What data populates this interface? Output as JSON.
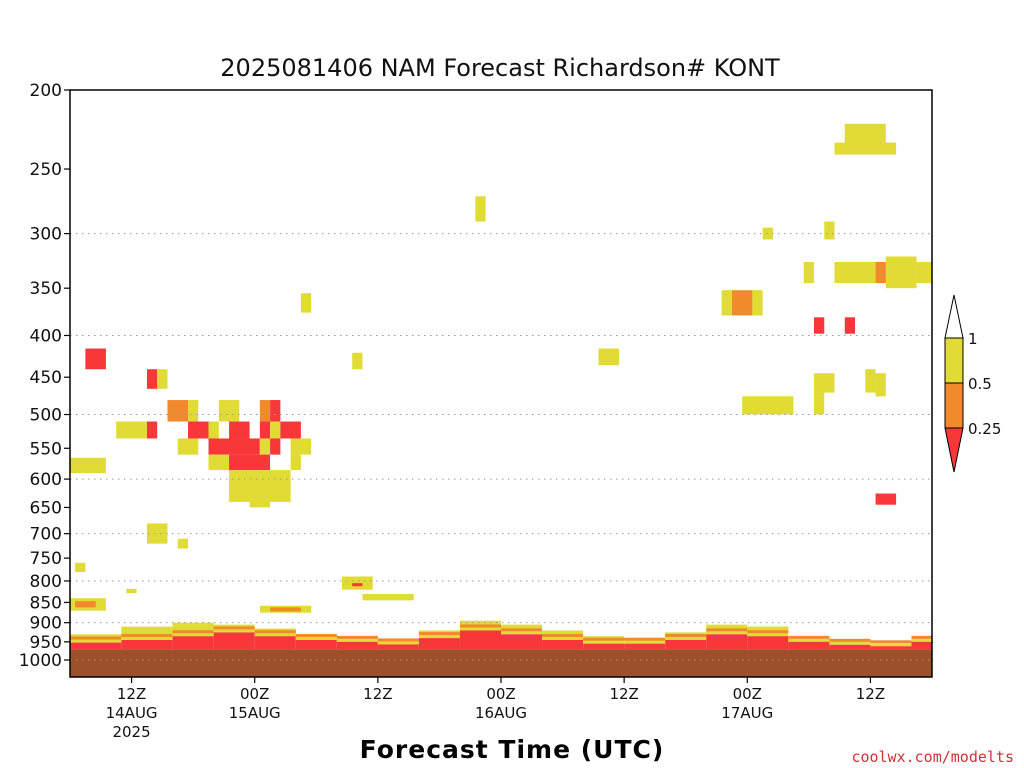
{
  "chart_data": {
    "type": "heatmap",
    "title": "2025081406 NAM Forecast Richardson# KONT",
    "xlabel": "Forecast Time (UTC)",
    "ylabel": "",
    "y_axis": {
      "scale": "log",
      "reversed": true,
      "range_hpa": [
        1000,
        200
      ],
      "ticks": [
        "200",
        "250",
        "300",
        "350",
        "400",
        "450",
        "500",
        "550",
        "600",
        "650",
        "700",
        "750",
        "800",
        "850",
        "900",
        "950",
        "1000"
      ]
    },
    "x_axis": {
      "range_hours": [
        0,
        84
      ],
      "ticks": [
        {
          "hour": 6,
          "lines": [
            "12Z",
            "14AUG",
            "2025"
          ]
        },
        {
          "hour": 18,
          "lines": [
            "00Z",
            "15AUG"
          ]
        },
        {
          "hour": 30,
          "lines": [
            "12Z"
          ]
        },
        {
          "hour": 42,
          "lines": [
            "00Z",
            "16AUG"
          ]
        },
        {
          "hour": 54,
          "lines": [
            "12Z"
          ]
        },
        {
          "hour": 66,
          "lines": [
            "00Z",
            "17AUG"
          ]
        },
        {
          "hour": 78,
          "lines": [
            "12Z"
          ]
        }
      ]
    },
    "grid": true,
    "colorbar": {
      "placement": "right",
      "labels": [
        "1",
        "0.5",
        "0.25"
      ],
      "colors": {
        "lt_025": "#f7373a",
        "025_05": "#f08a2d",
        "05_1": "#e1db35",
        "gt_1": "#ffffff",
        "below_ground": "#9c512b"
      }
    },
    "below_ground_hpa": 970,
    "cells": [
      {
        "h0": 1.5,
        "h1": 3.5,
        "p0": 415,
        "p1": 440,
        "c": "lt_025"
      },
      {
        "h0": 0,
        "h1": 3.5,
        "p0": 565,
        "p1": 590,
        "c": "05_1"
      },
      {
        "h0": 0.5,
        "h1": 1.5,
        "p0": 760,
        "p1": 780,
        "c": "05_1"
      },
      {
        "h0": 7.5,
        "h1": 8.5,
        "p0": 440,
        "p1": 465,
        "c": "lt_025"
      },
      {
        "h0": 8.5,
        "h1": 9.5,
        "p0": 440,
        "p1": 465,
        "c": "05_1"
      },
      {
        "h0": 9.5,
        "h1": 11.5,
        "p0": 480,
        "p1": 510,
        "c": "025_05"
      },
      {
        "h0": 11.5,
        "h1": 12.5,
        "p0": 480,
        "p1": 510,
        "c": "05_1"
      },
      {
        "h0": 14.5,
        "h1": 16.5,
        "p0": 480,
        "p1": 510,
        "c": "05_1"
      },
      {
        "h0": 18.5,
        "h1": 19.5,
        "p0": 480,
        "p1": 510,
        "c": "025_05"
      },
      {
        "h0": 19.5,
        "h1": 20.5,
        "p0": 480,
        "p1": 510,
        "c": "lt_025"
      },
      {
        "h0": 4.5,
        "h1": 7.5,
        "p0": 510,
        "p1": 535,
        "c": "05_1"
      },
      {
        "h0": 7.5,
        "h1": 8.5,
        "p0": 510,
        "p1": 535,
        "c": "lt_025"
      },
      {
        "h0": 11.5,
        "h1": 13.5,
        "p0": 510,
        "p1": 535,
        "c": "lt_025"
      },
      {
        "h0": 13.5,
        "h1": 14.5,
        "p0": 510,
        "p1": 535,
        "c": "05_1"
      },
      {
        "h0": 15.5,
        "h1": 17.5,
        "p0": 510,
        "p1": 535,
        "c": "lt_025"
      },
      {
        "h0": 18.5,
        "h1": 19.5,
        "p0": 510,
        "p1": 535,
        "c": "lt_025"
      },
      {
        "h0": 19.5,
        "h1": 20.5,
        "p0": 510,
        "p1": 535,
        "c": "05_1"
      },
      {
        "h0": 20.5,
        "h1": 22.5,
        "p0": 510,
        "p1": 535,
        "c": "lt_025"
      },
      {
        "h0": 10.5,
        "h1": 12.5,
        "p0": 535,
        "p1": 560,
        "c": "05_1"
      },
      {
        "h0": 13.5,
        "h1": 18.5,
        "p0": 535,
        "p1": 560,
        "c": "lt_025"
      },
      {
        "h0": 18.5,
        "h1": 19.5,
        "p0": 535,
        "p1": 560,
        "c": "05_1"
      },
      {
        "h0": 19.5,
        "h1": 20.5,
        "p0": 535,
        "p1": 560,
        "c": "lt_025"
      },
      {
        "h0": 21.5,
        "h1": 23.5,
        "p0": 535,
        "p1": 560,
        "c": "05_1"
      },
      {
        "h0": 13.5,
        "h1": 15.5,
        "p0": 560,
        "p1": 585,
        "c": "05_1"
      },
      {
        "h0": 15.5,
        "h1": 19.5,
        "p0": 560,
        "p1": 585,
        "c": "lt_025"
      },
      {
        "h0": 21.5,
        "h1": 22.5,
        "p0": 560,
        "p1": 585,
        "c": "05_1"
      },
      {
        "h0": 15.5,
        "h1": 21.5,
        "p0": 585,
        "p1": 640,
        "c": "05_1"
      },
      {
        "h0": 17.5,
        "h1": 19.5,
        "p0": 640,
        "p1": 650,
        "c": "05_1"
      },
      {
        "h0": 7.5,
        "h1": 9.5,
        "p0": 680,
        "p1": 720,
        "c": "05_1"
      },
      {
        "h0": 10.5,
        "h1": 11.5,
        "p0": 710,
        "p1": 730,
        "c": "05_1"
      },
      {
        "h0": 0,
        "h1": 3.5,
        "p0": 840,
        "p1": 870,
        "c": "05_1"
      },
      {
        "h0": 0.5,
        "h1": 2.5,
        "p0": 847,
        "p1": 862,
        "c": "025_05"
      },
      {
        "h0": 5.5,
        "h1": 6.5,
        "p0": 818,
        "p1": 828,
        "c": "05_1"
      },
      {
        "h0": 22.5,
        "h1": 23.5,
        "p0": 355,
        "p1": 375,
        "c": "05_1"
      },
      {
        "h0": 27.5,
        "h1": 28.5,
        "p0": 420,
        "p1": 440,
        "c": "05_1"
      },
      {
        "h0": 39.5,
        "h1": 40.5,
        "p0": 270,
        "p1": 290,
        "c": "05_1"
      },
      {
        "h0": 51.5,
        "h1": 53.5,
        "p0": 415,
        "p1": 435,
        "c": "05_1"
      },
      {
        "h0": 26.5,
        "h1": 29.5,
        "p0": 790,
        "p1": 820,
        "c": "05_1"
      },
      {
        "h0": 27.5,
        "h1": 28.5,
        "p0": 805,
        "p1": 812,
        "c": "lt_025"
      },
      {
        "h0": 28.5,
        "h1": 33.5,
        "p0": 830,
        "p1": 845,
        "c": "05_1"
      },
      {
        "h0": 18.5,
        "h1": 23.5,
        "p0": 858,
        "p1": 875,
        "c": "05_1"
      },
      {
        "h0": 19.5,
        "h1": 22.5,
        "p0": 862,
        "p1": 872,
        "c": "025_05"
      },
      {
        "h0": 75.5,
        "h1": 79.5,
        "p0": 220,
        "p1": 238,
        "c": "05_1"
      },
      {
        "h0": 74.5,
        "h1": 80.5,
        "p0": 232,
        "p1": 240,
        "c": "05_1"
      },
      {
        "h0": 67.5,
        "h1": 68.5,
        "p0": 295,
        "p1": 305,
        "c": "05_1"
      },
      {
        "h0": 73.5,
        "h1": 74.5,
        "p0": 290,
        "p1": 305,
        "c": "05_1"
      },
      {
        "h0": 71.5,
        "h1": 72.5,
        "p0": 325,
        "p1": 345,
        "c": "05_1"
      },
      {
        "h0": 74.5,
        "h1": 78.5,
        "p0": 325,
        "p1": 345,
        "c": "05_1"
      },
      {
        "h0": 78.5,
        "h1": 79.5,
        "p0": 325,
        "p1": 345,
        "c": "025_05"
      },
      {
        "h0": 79.5,
        "h1": 81.5,
        "p0": 325,
        "p1": 345,
        "c": "lt_025"
      },
      {
        "h0": 81.5,
        "h1": 82.5,
        "p0": 325,
        "p1": 345,
        "c": "025_05"
      },
      {
        "h0": 82.5,
        "h1": 84,
        "p0": 325,
        "p1": 345,
        "c": "05_1"
      },
      {
        "h0": 79.5,
        "h1": 82.5,
        "p0": 320,
        "p1": 350,
        "c": "05_1"
      },
      {
        "h0": 63.5,
        "h1": 64.5,
        "p0": 352,
        "p1": 378,
        "c": "05_1"
      },
      {
        "h0": 64.5,
        "h1": 66.5,
        "p0": 352,
        "p1": 378,
        "c": "025_05"
      },
      {
        "h0": 66.5,
        "h1": 67.5,
        "p0": 352,
        "p1": 378,
        "c": "05_1"
      },
      {
        "h0": 72.5,
        "h1": 73.5,
        "p0": 380,
        "p1": 398,
        "c": "lt_025"
      },
      {
        "h0": 75.5,
        "h1": 76.5,
        "p0": 380,
        "p1": 398,
        "c": "lt_025"
      },
      {
        "h0": 72.5,
        "h1": 74.5,
        "p0": 445,
        "p1": 470,
        "c": "05_1"
      },
      {
        "h0": 77.5,
        "h1": 78.5,
        "p0": 440,
        "p1": 470,
        "c": "05_1"
      },
      {
        "h0": 78.5,
        "h1": 79.5,
        "p0": 445,
        "p1": 475,
        "c": "05_1"
      },
      {
        "h0": 65.5,
        "h1": 70.5,
        "p0": 475,
        "p1": 500,
        "c": "05_1"
      },
      {
        "h0": 72.5,
        "h1": 73.5,
        "p0": 470,
        "p1": 500,
        "c": "05_1"
      },
      {
        "h0": 78.5,
        "h1": 80.5,
        "p0": 625,
        "p1": 645,
        "c": "lt_025"
      }
    ],
    "surface_layer": [
      {
        "h0": 0,
        "h1": 5,
        "red_top": 952,
        "yel_top": 930
      },
      {
        "h0": 5,
        "h1": 10,
        "red_top": 945,
        "yel_top": 910
      },
      {
        "h0": 10,
        "h1": 14,
        "red_top": 935,
        "yel_top": 900
      },
      {
        "h0": 14,
        "h1": 18,
        "red_top": 925,
        "yel_top": 905
      },
      {
        "h0": 18,
        "h1": 22,
        "red_top": 935,
        "yel_top": 915
      },
      {
        "h0": 22,
        "h1": 26,
        "red_top": 945,
        "yel_top": 930
      },
      {
        "h0": 26,
        "h1": 30,
        "red_top": 950,
        "yel_top": 935
      },
      {
        "h0": 30,
        "h1": 34,
        "red_top": 957,
        "yel_top": 945
      },
      {
        "h0": 34,
        "h1": 38,
        "red_top": 940,
        "yel_top": 920
      },
      {
        "h0": 38,
        "h1": 42,
        "red_top": 920,
        "yel_top": 895
      },
      {
        "h0": 42,
        "h1": 46,
        "red_top": 930,
        "yel_top": 905
      },
      {
        "h0": 46,
        "h1": 50,
        "red_top": 945,
        "yel_top": 920
      },
      {
        "h0": 50,
        "h1": 54,
        "red_top": 955,
        "yel_top": 935
      },
      {
        "h0": 54,
        "h1": 58,
        "red_top": 955,
        "yel_top": 940
      },
      {
        "h0": 58,
        "h1": 62,
        "red_top": 945,
        "yel_top": 925
      },
      {
        "h0": 62,
        "h1": 66,
        "red_top": 930,
        "yel_top": 905
      },
      {
        "h0": 66,
        "h1": 70,
        "red_top": 935,
        "yel_top": 910
      },
      {
        "h0": 70,
        "h1": 74,
        "red_top": 950,
        "yel_top": 935
      },
      {
        "h0": 74,
        "h1": 78,
        "red_top": 958,
        "yel_top": 945
      },
      {
        "h0": 78,
        "h1": 82,
        "red_top": 962,
        "yel_top": 955
      },
      {
        "h0": 82,
        "h1": 84,
        "red_top": 950,
        "yel_top": 940
      }
    ]
  },
  "credit": "coolwx.com/modelts"
}
